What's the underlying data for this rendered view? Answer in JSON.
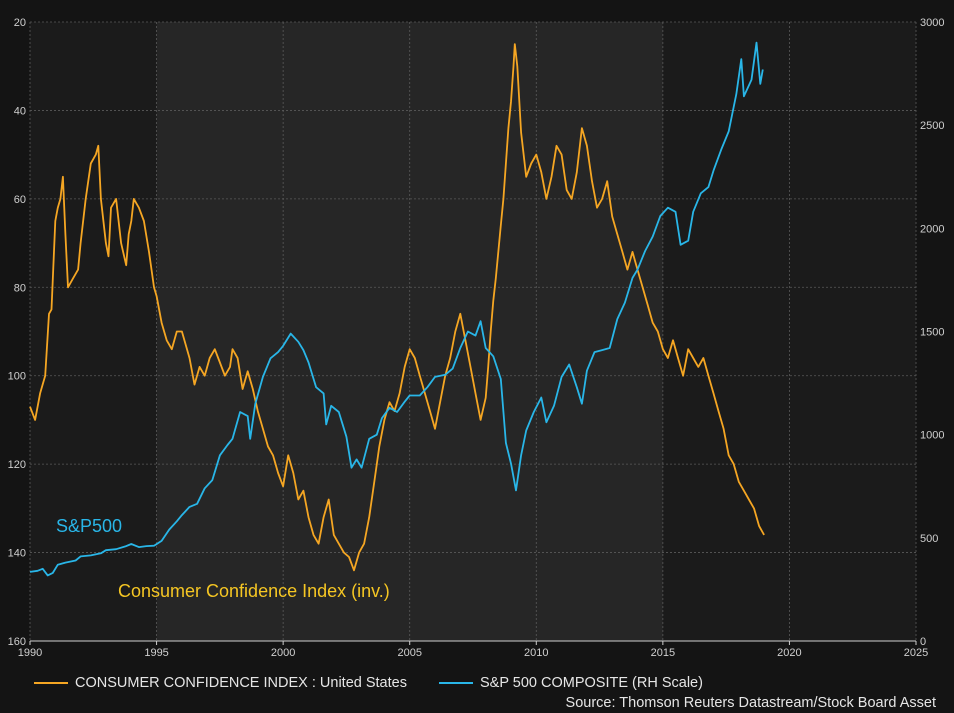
{
  "chart_data": {
    "type": "line",
    "x_range": [
      1990,
      2025
    ],
    "x_ticks": [
      "1990",
      "1995",
      "2000",
      "2005",
      "2010",
      "2015",
      "2020",
      "2025"
    ],
    "left_axis": {
      "range": [
        20,
        160
      ],
      "inverted": true,
      "ticks": [
        "20",
        "40",
        "60",
        "80",
        "100",
        "120",
        "140",
        "160"
      ]
    },
    "right_axis": {
      "range": [
        0,
        3000
      ],
      "ticks": [
        "0",
        "500",
        "1000",
        "1500",
        "2000",
        "2500",
        "3000"
      ]
    },
    "grid": true,
    "shaded_band": [
      1995,
      2015
    ],
    "annotations": {
      "sp500": "S&P500",
      "cci": "Consumer Confidence Index (inv.)"
    },
    "series": [
      {
        "name": "CONSUMER CONFIDENCE INDEX : United States",
        "axis": "left",
        "color": "#f5a623",
        "points": [
          [
            1990.0,
            107
          ],
          [
            1990.2,
            110
          ],
          [
            1990.4,
            104
          ],
          [
            1990.6,
            100
          ],
          [
            1990.75,
            86
          ],
          [
            1990.85,
            85
          ],
          [
            1991.0,
            65
          ],
          [
            1991.1,
            62
          ],
          [
            1991.2,
            60
          ],
          [
            1991.3,
            55
          ],
          [
            1991.4,
            68
          ],
          [
            1991.5,
            80
          ],
          [
            1991.7,
            78
          ],
          [
            1991.9,
            76
          ],
          [
            1992.0,
            70
          ],
          [
            1992.2,
            60
          ],
          [
            1992.4,
            52
          ],
          [
            1992.6,
            50
          ],
          [
            1992.7,
            48
          ],
          [
            1992.8,
            60
          ],
          [
            1993.0,
            70
          ],
          [
            1993.1,
            73
          ],
          [
            1993.2,
            62
          ],
          [
            1993.4,
            60
          ],
          [
            1993.6,
            70
          ],
          [
            1993.8,
            75
          ],
          [
            1993.9,
            68
          ],
          [
            1994.0,
            65
          ],
          [
            1994.1,
            60
          ],
          [
            1994.3,
            62
          ],
          [
            1994.5,
            65
          ],
          [
            1994.7,
            72
          ],
          [
            1994.9,
            80
          ],
          [
            1995.0,
            82
          ],
          [
            1995.2,
            88
          ],
          [
            1995.4,
            92
          ],
          [
            1995.6,
            94
          ],
          [
            1995.8,
            90
          ],
          [
            1996.0,
            90
          ],
          [
            1996.3,
            96
          ],
          [
            1996.5,
            102
          ],
          [
            1996.7,
            98
          ],
          [
            1996.9,
            100
          ],
          [
            1997.1,
            96
          ],
          [
            1997.3,
            94
          ],
          [
            1997.5,
            97
          ],
          [
            1997.7,
            100
          ],
          [
            1997.9,
            98
          ],
          [
            1998.0,
            94
          ],
          [
            1998.2,
            96
          ],
          [
            1998.4,
            103
          ],
          [
            1998.6,
            99
          ],
          [
            1998.8,
            103
          ],
          [
            1999.0,
            108
          ],
          [
            1999.2,
            112
          ],
          [
            1999.4,
            116
          ],
          [
            1999.6,
            118
          ],
          [
            1999.8,
            122
          ],
          [
            2000.0,
            125
          ],
          [
            2000.2,
            118
          ],
          [
            2000.4,
            122
          ],
          [
            2000.6,
            128
          ],
          [
            2000.8,
            126
          ],
          [
            2001.0,
            132
          ],
          [
            2001.2,
            136
          ],
          [
            2001.4,
            138
          ],
          [
            2001.6,
            132
          ],
          [
            2001.8,
            128
          ],
          [
            2002.0,
            136
          ],
          [
            2002.2,
            138
          ],
          [
            2002.4,
            140
          ],
          [
            2002.6,
            141
          ],
          [
            2002.8,
            144
          ],
          [
            2003.0,
            140
          ],
          [
            2003.2,
            138
          ],
          [
            2003.4,
            132
          ],
          [
            2003.6,
            124
          ],
          [
            2003.8,
            116
          ],
          [
            2004.0,
            110
          ],
          [
            2004.2,
            106
          ],
          [
            2004.4,
            108
          ],
          [
            2004.6,
            104
          ],
          [
            2004.8,
            98
          ],
          [
            2005.0,
            94
          ],
          [
            2005.2,
            96
          ],
          [
            2005.4,
            100
          ],
          [
            2005.6,
            104
          ],
          [
            2005.8,
            108
          ],
          [
            2006.0,
            112
          ],
          [
            2006.2,
            106
          ],
          [
            2006.4,
            100
          ],
          [
            2006.6,
            96
          ],
          [
            2006.8,
            90
          ],
          [
            2007.0,
            86
          ],
          [
            2007.2,
            92
          ],
          [
            2007.4,
            98
          ],
          [
            2007.6,
            104
          ],
          [
            2007.8,
            110
          ],
          [
            2008.0,
            105
          ],
          [
            2008.1,
            98
          ],
          [
            2008.2,
            90
          ],
          [
            2008.3,
            83
          ],
          [
            2008.4,
            78
          ],
          [
            2008.5,
            72
          ],
          [
            2008.6,
            66
          ],
          [
            2008.7,
            60
          ],
          [
            2008.8,
            52
          ],
          [
            2008.9,
            44
          ],
          [
            2009.0,
            38
          ],
          [
            2009.1,
            30
          ],
          [
            2009.15,
            25
          ],
          [
            2009.25,
            30
          ],
          [
            2009.4,
            45
          ],
          [
            2009.6,
            55
          ],
          [
            2009.8,
            52
          ],
          [
            2010.0,
            50
          ],
          [
            2010.2,
            54
          ],
          [
            2010.4,
            60
          ],
          [
            2010.6,
            55
          ],
          [
            2010.8,
            48
          ],
          [
            2011.0,
            50
          ],
          [
            2011.2,
            58
          ],
          [
            2011.4,
            60
          ],
          [
            2011.6,
            54
          ],
          [
            2011.8,
            44
          ],
          [
            2012.0,
            48
          ],
          [
            2012.2,
            56
          ],
          [
            2012.4,
            62
          ],
          [
            2012.6,
            60
          ],
          [
            2012.8,
            56
          ],
          [
            2013.0,
            64
          ],
          [
            2013.2,
            68
          ],
          [
            2013.4,
            72
          ],
          [
            2013.6,
            76
          ],
          [
            2013.8,
            72
          ],
          [
            2014.0,
            76
          ],
          [
            2014.2,
            80
          ],
          [
            2014.4,
            84
          ],
          [
            2014.6,
            88
          ],
          [
            2014.8,
            90
          ],
          [
            2015.0,
            94
          ],
          [
            2015.2,
            96
          ],
          [
            2015.4,
            92
          ],
          [
            2015.6,
            96
          ],
          [
            2015.8,
            100
          ],
          [
            2016.0,
            94
          ],
          [
            2016.2,
            96
          ],
          [
            2016.4,
            98
          ],
          [
            2016.6,
            96
          ],
          [
            2016.8,
            100
          ],
          [
            2017.0,
            104
          ],
          [
            2017.2,
            108
          ],
          [
            2017.4,
            112
          ],
          [
            2017.6,
            118
          ],
          [
            2017.8,
            120
          ],
          [
            2018.0,
            124
          ],
          [
            2018.2,
            126
          ],
          [
            2018.4,
            128
          ],
          [
            2018.6,
            130
          ],
          [
            2018.8,
            134
          ],
          [
            2019.0,
            136
          ]
        ]
      },
      {
        "name": "S&P 500 COMPOSITE (RH Scale)",
        "axis": "right",
        "color": "#29b6e8",
        "points": [
          [
            1990.0,
            335
          ],
          [
            1990.3,
            340
          ],
          [
            1990.5,
            350
          ],
          [
            1990.7,
            318
          ],
          [
            1990.9,
            330
          ],
          [
            1991.1,
            370
          ],
          [
            1991.4,
            380
          ],
          [
            1991.8,
            390
          ],
          [
            1992.0,
            410
          ],
          [
            1992.4,
            415
          ],
          [
            1992.8,
            425
          ],
          [
            1993.0,
            440
          ],
          [
            1993.4,
            445
          ],
          [
            1993.8,
            460
          ],
          [
            1994.0,
            470
          ],
          [
            1994.3,
            455
          ],
          [
            1994.6,
            460
          ],
          [
            1994.9,
            462
          ],
          [
            1995.2,
            485
          ],
          [
            1995.5,
            540
          ],
          [
            1995.8,
            580
          ],
          [
            1996.0,
            610
          ],
          [
            1996.3,
            650
          ],
          [
            1996.6,
            665
          ],
          [
            1996.9,
            740
          ],
          [
            1997.2,
            780
          ],
          [
            1997.5,
            900
          ],
          [
            1997.8,
            950
          ],
          [
            1998.0,
            980
          ],
          [
            1998.3,
            1110
          ],
          [
            1998.6,
            1090
          ],
          [
            1998.7,
            980
          ],
          [
            1998.9,
            1150
          ],
          [
            1999.2,
            1280
          ],
          [
            1999.5,
            1370
          ],
          [
            1999.8,
            1400
          ],
          [
            2000.0,
            1430
          ],
          [
            2000.3,
            1490
          ],
          [
            2000.6,
            1450
          ],
          [
            2000.8,
            1410
          ],
          [
            2001.0,
            1350
          ],
          [
            2001.3,
            1230
          ],
          [
            2001.6,
            1200
          ],
          [
            2001.7,
            1050
          ],
          [
            2001.9,
            1140
          ],
          [
            2002.2,
            1110
          ],
          [
            2002.5,
            990
          ],
          [
            2002.7,
            840
          ],
          [
            2002.9,
            880
          ],
          [
            2003.1,
            840
          ],
          [
            2003.4,
            980
          ],
          [
            2003.7,
            1000
          ],
          [
            2003.9,
            1080
          ],
          [
            2004.2,
            1130
          ],
          [
            2004.5,
            1110
          ],
          [
            2004.8,
            1160
          ],
          [
            2005.0,
            1190
          ],
          [
            2005.4,
            1190
          ],
          [
            2005.7,
            1230
          ],
          [
            2006.0,
            1280
          ],
          [
            2006.4,
            1290
          ],
          [
            2006.7,
            1320
          ],
          [
            2007.0,
            1420
          ],
          [
            2007.3,
            1500
          ],
          [
            2007.6,
            1480
          ],
          [
            2007.8,
            1550
          ],
          [
            2008.0,
            1420
          ],
          [
            2008.3,
            1380
          ],
          [
            2008.6,
            1270
          ],
          [
            2008.8,
            960
          ],
          [
            2009.0,
            860
          ],
          [
            2009.2,
            730
          ],
          [
            2009.4,
            900
          ],
          [
            2009.6,
            1020
          ],
          [
            2009.9,
            1110
          ],
          [
            2010.2,
            1180
          ],
          [
            2010.4,
            1060
          ],
          [
            2010.7,
            1140
          ],
          [
            2011.0,
            1280
          ],
          [
            2011.3,
            1340
          ],
          [
            2011.6,
            1230
          ],
          [
            2011.8,
            1150
          ],
          [
            2012.0,
            1310
          ],
          [
            2012.3,
            1400
          ],
          [
            2012.6,
            1410
          ],
          [
            2012.9,
            1420
          ],
          [
            2013.2,
            1560
          ],
          [
            2013.5,
            1640
          ],
          [
            2013.8,
            1760
          ],
          [
            2014.0,
            1800
          ],
          [
            2014.3,
            1890
          ],
          [
            2014.6,
            1960
          ],
          [
            2014.9,
            2060
          ],
          [
            2015.2,
            2100
          ],
          [
            2015.5,
            2080
          ],
          [
            2015.7,
            1920
          ],
          [
            2016.0,
            1940
          ],
          [
            2016.2,
            2080
          ],
          [
            2016.5,
            2170
          ],
          [
            2016.8,
            2200
          ],
          [
            2017.0,
            2280
          ],
          [
            2017.3,
            2380
          ],
          [
            2017.6,
            2470
          ],
          [
            2017.9,
            2650
          ],
          [
            2018.1,
            2820
          ],
          [
            2018.2,
            2640
          ],
          [
            2018.5,
            2720
          ],
          [
            2018.7,
            2900
          ],
          [
            2018.85,
            2700
          ],
          [
            2018.95,
            2770
          ]
        ]
      }
    ]
  },
  "legend": {
    "cci_label": "CONSUMER CONFIDENCE INDEX : United States",
    "sp_label": "S&P 500 COMPOSITE (RH Scale)"
  },
  "source": "Source: Thomson Reuters Datastream/Stock Board Asset",
  "colors": {
    "background": "#141414",
    "plot": "#1b1b1b",
    "band": "#262626",
    "grid": "#5a5a5a",
    "cci": "#f5a623",
    "sp500": "#29b6e8"
  }
}
